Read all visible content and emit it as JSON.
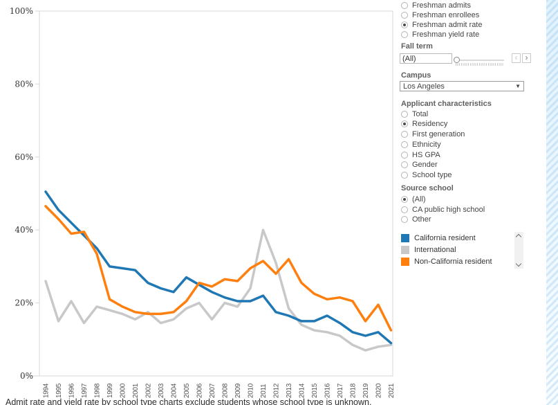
{
  "panel": {
    "measures": {
      "items": [
        {
          "label": "Freshman admits",
          "selected": false
        },
        {
          "label": "Freshman enrollees",
          "selected": false
        },
        {
          "label": "Freshman admit rate",
          "selected": true
        },
        {
          "label": "Freshman yield rate",
          "selected": false
        }
      ]
    },
    "fall_term": {
      "label": "Fall term",
      "value": "(All)"
    },
    "campus": {
      "label": "Campus",
      "value": "Los Angeles"
    },
    "applicant_characteristics": {
      "label": "Applicant characteristics",
      "items": [
        {
          "label": "Total",
          "selected": false
        },
        {
          "label": "Residency",
          "selected": true
        },
        {
          "label": "First generation",
          "selected": false
        },
        {
          "label": "Ethnicity",
          "selected": false
        },
        {
          "label": "HS GPA",
          "selected": false
        },
        {
          "label": "Gender",
          "selected": false
        },
        {
          "label": "School type",
          "selected": false
        }
      ]
    },
    "source_school": {
      "label": "Source school",
      "items": [
        {
          "label": "(All)",
          "selected": true
        },
        {
          "label": "CA public high school",
          "selected": false
        },
        {
          "label": "Other",
          "selected": false
        }
      ]
    },
    "legend": {
      "items": [
        {
          "label": "California resident",
          "color": "#1f77b4"
        },
        {
          "label": "International",
          "color": "#c8c8c8"
        },
        {
          "label": "Non-California resident",
          "color": "#ff7f0e"
        }
      ]
    }
  },
  "footnote": "Admit rate and yield rate by school type charts exclude students whose school type is unknown.",
  "chart_data": {
    "type": "line",
    "title": "",
    "xlabel": "",
    "ylabel": "",
    "ylim": [
      0,
      100
    ],
    "yticks": [
      "0%",
      "20%",
      "40%",
      "60%",
      "80%",
      "100%"
    ],
    "grid": false,
    "legend_position": "right-panel",
    "x": [
      1994,
      1995,
      1996,
      1997,
      1998,
      1999,
      2000,
      2001,
      2002,
      2003,
      2004,
      2005,
      2006,
      2007,
      2008,
      2009,
      2010,
      2011,
      2012,
      2013,
      2014,
      2015,
      2016,
      2017,
      2018,
      2019,
      2020,
      2021
    ],
    "series": [
      {
        "name": "California resident",
        "color": "#1f77b4",
        "values": [
          50.5,
          45.5,
          42,
          38.5,
          35,
          30,
          29.5,
          29,
          25.5,
          24,
          23,
          27,
          25,
          23,
          21.5,
          20.5,
          20.5,
          22,
          17.5,
          16.5,
          15,
          15,
          16.5,
          14.5,
          12,
          11,
          12,
          9
        ]
      },
      {
        "name": "International",
        "color": "#c8c8c8",
        "values": [
          26,
          15,
          20.5,
          14.5,
          19,
          18,
          17,
          15.5,
          17.5,
          14.5,
          15.5,
          18.5,
          20,
          15.5,
          20,
          19,
          24,
          40,
          31,
          18.5,
          14,
          12.5,
          12,
          11,
          8.5,
          7,
          8,
          8.5
        ]
      },
      {
        "name": "Non-California resident",
        "color": "#ff7f0e",
        "values": [
          46.5,
          43,
          39,
          39.5,
          33.5,
          21,
          19,
          17.5,
          17,
          17,
          17.5,
          20.5,
          25.5,
          24.5,
          26.5,
          26,
          29.5,
          31.5,
          28,
          32,
          25.5,
          22.5,
          21,
          21.5,
          20.5,
          15,
          19.5,
          12.5
        ]
      }
    ]
  }
}
